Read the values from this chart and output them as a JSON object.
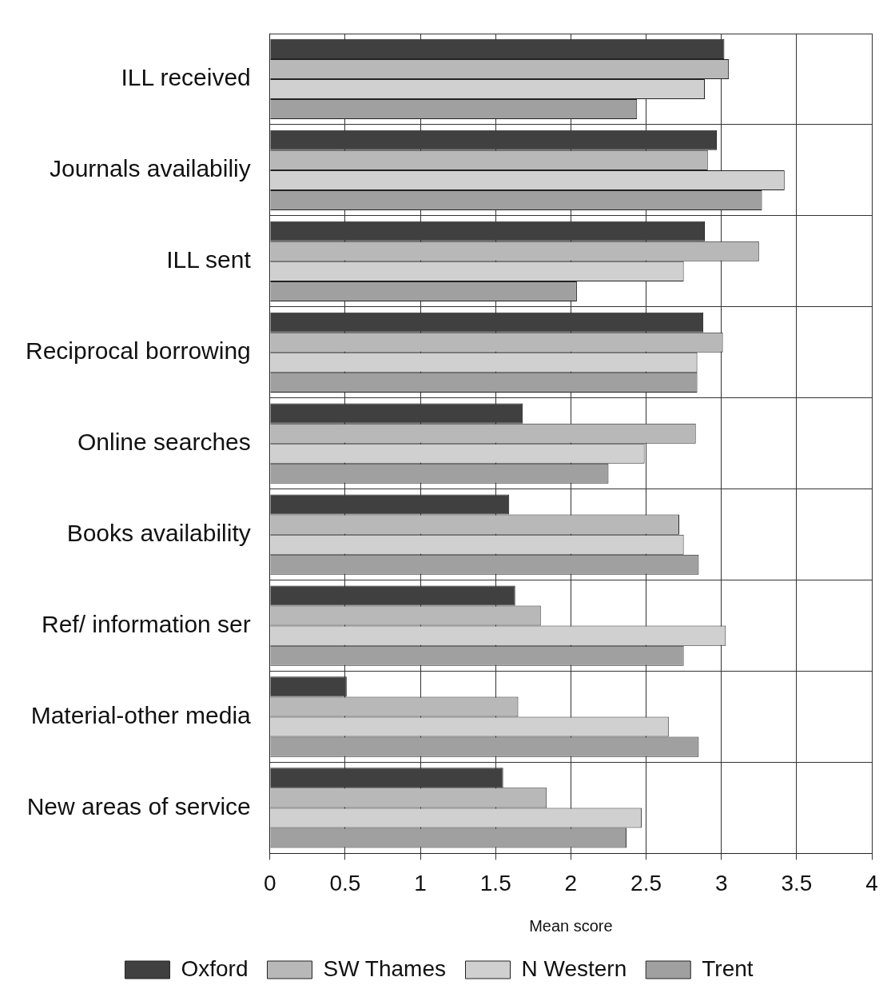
{
  "chart_data": {
    "type": "bar",
    "orientation": "horizontal",
    "xlabel": "Mean score",
    "categories": [
      "ILL received",
      "Journals availabiliy",
      "ILL sent",
      "Reciprocal borrowing",
      "Online searches",
      "Books availability",
      "Ref/ information ser",
      "Material-other media",
      "New areas of service"
    ],
    "series": [
      {
        "name": "Oxford",
        "color": "#404040",
        "values": [
          3.02,
          2.97,
          2.89,
          2.88,
          1.68,
          1.59,
          1.63,
          0.51,
          1.55
        ]
      },
      {
        "name": "SW Thames",
        "color": "#b8b8b8",
        "values": [
          3.05,
          2.91,
          3.25,
          3.01,
          2.83,
          2.72,
          1.8,
          1.65,
          1.84
        ]
      },
      {
        "name": "N Western",
        "color": "#d0d0d0",
        "values": [
          2.89,
          3.42,
          2.75,
          2.84,
          2.49,
          2.75,
          3.03,
          2.65,
          2.47
        ]
      },
      {
        "name": "Trent",
        "color": "#a0a0a0",
        "values": [
          2.44,
          3.27,
          2.04,
          2.84,
          2.25,
          2.85,
          2.75,
          2.85,
          2.37
        ]
      }
    ],
    "xlim": [
      0,
      4
    ],
    "xticks": [
      0,
      0.5,
      1,
      1.5,
      2,
      2.5,
      3,
      3.5,
      4
    ],
    "grid": true,
    "legend": "bottom"
  }
}
